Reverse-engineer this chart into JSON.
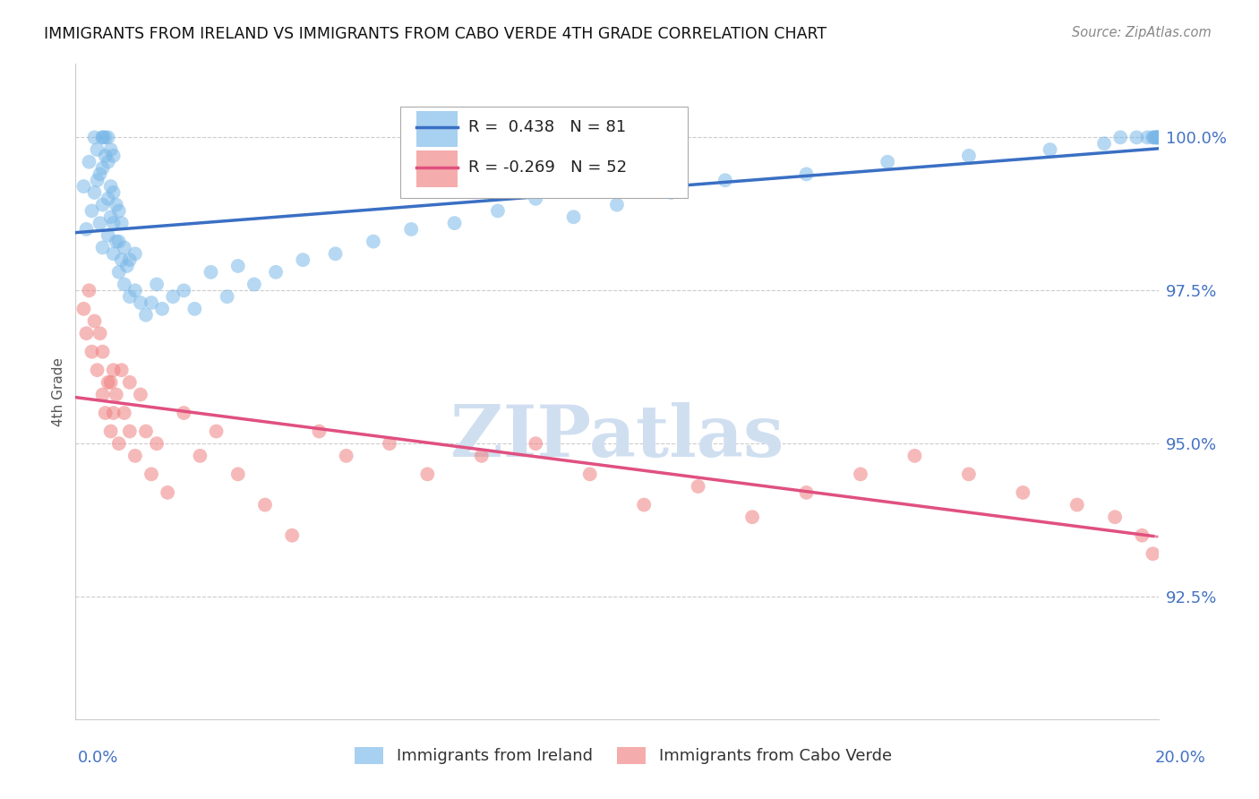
{
  "title": "IMMIGRANTS FROM IRELAND VS IMMIGRANTS FROM CABO VERDE 4TH GRADE CORRELATION CHART",
  "source": "Source: ZipAtlas.com",
  "ylabel": "4th Grade",
  "xmin": 0.0,
  "xmax": 20.0,
  "ymin": 90.5,
  "ymax": 101.2,
  "yticks": [
    92.5,
    95.0,
    97.5,
    100.0
  ],
  "ytick_labels": [
    "92.5%",
    "95.0%",
    "97.5%",
    "100.0%"
  ],
  "ireland_R": 0.438,
  "ireland_N": 81,
  "caboverde_R": -0.269,
  "caboverde_N": 52,
  "ireland_color": "#7ab8e8",
  "caboverde_color": "#f08080",
  "ireland_line_color": "#3a6fc4",
  "caboverde_line_color": "#e05080",
  "watermark_color": "#d0dff0",
  "tick_color": "#4472c4",
  "grid_color": "#cccccc",
  "ireland_x": [
    0.15,
    0.2,
    0.25,
    0.3,
    0.35,
    0.35,
    0.4,
    0.4,
    0.45,
    0.45,
    0.5,
    0.5,
    0.5,
    0.5,
    0.5,
    0.55,
    0.55,
    0.6,
    0.6,
    0.6,
    0.6,
    0.65,
    0.65,
    0.65,
    0.7,
    0.7,
    0.7,
    0.7,
    0.75,
    0.75,
    0.8,
    0.8,
    0.8,
    0.85,
    0.85,
    0.9,
    0.9,
    0.95,
    1.0,
    1.0,
    1.1,
    1.1,
    1.2,
    1.3,
    1.4,
    1.5,
    1.6,
    1.8,
    2.0,
    2.2,
    2.5,
    2.8,
    3.0,
    3.3,
    3.7,
    4.2,
    4.8,
    5.5,
    6.2,
    7.0,
    7.8,
    8.5,
    9.2,
    10.0,
    11.0,
    12.0,
    13.5,
    15.0,
    16.5,
    18.0,
    19.0,
    19.3,
    19.6,
    19.8,
    19.9,
    19.92,
    19.95,
    19.97,
    19.98,
    19.99,
    20.0
  ],
  "ireland_y": [
    99.2,
    98.5,
    99.6,
    98.8,
    99.1,
    100.0,
    99.3,
    99.8,
    98.6,
    99.4,
    98.2,
    98.9,
    99.5,
    100.0,
    100.0,
    99.7,
    100.0,
    98.4,
    99.0,
    99.6,
    100.0,
    98.7,
    99.2,
    99.8,
    98.1,
    98.6,
    99.1,
    99.7,
    98.3,
    98.9,
    97.8,
    98.3,
    98.8,
    98.0,
    98.6,
    97.6,
    98.2,
    97.9,
    97.4,
    98.0,
    97.5,
    98.1,
    97.3,
    97.1,
    97.3,
    97.6,
    97.2,
    97.4,
    97.5,
    97.2,
    97.8,
    97.4,
    97.9,
    97.6,
    97.8,
    98.0,
    98.1,
    98.3,
    98.5,
    98.6,
    98.8,
    99.0,
    98.7,
    98.9,
    99.1,
    99.3,
    99.4,
    99.6,
    99.7,
    99.8,
    99.9,
    100.0,
    100.0,
    100.0,
    100.0,
    100.0,
    100.0,
    100.0,
    100.0,
    100.0,
    100.0
  ],
  "caboverde_x": [
    0.15,
    0.2,
    0.25,
    0.3,
    0.35,
    0.4,
    0.45,
    0.5,
    0.5,
    0.55,
    0.6,
    0.65,
    0.65,
    0.7,
    0.7,
    0.75,
    0.8,
    0.85,
    0.9,
    1.0,
    1.0,
    1.1,
    1.2,
    1.3,
    1.4,
    1.5,
    1.7,
    2.0,
    2.3,
    2.6,
    3.0,
    3.5,
    4.0,
    4.5,
    5.0,
    5.8,
    6.5,
    7.5,
    8.5,
    9.5,
    10.5,
    11.5,
    12.5,
    13.5,
    14.5,
    15.5,
    16.5,
    17.5,
    18.5,
    19.2,
    19.7,
    19.9
  ],
  "caboverde_y": [
    97.2,
    96.8,
    97.5,
    96.5,
    97.0,
    96.2,
    96.8,
    95.8,
    96.5,
    95.5,
    96.0,
    95.2,
    96.0,
    95.5,
    96.2,
    95.8,
    95.0,
    96.2,
    95.5,
    95.2,
    96.0,
    94.8,
    95.8,
    95.2,
    94.5,
    95.0,
    94.2,
    95.5,
    94.8,
    95.2,
    94.5,
    94.0,
    93.5,
    95.2,
    94.8,
    95.0,
    94.5,
    94.8,
    95.0,
    94.5,
    94.0,
    94.3,
    93.8,
    94.2,
    94.5,
    94.8,
    94.5,
    94.2,
    94.0,
    93.8,
    93.5,
    93.2
  ]
}
